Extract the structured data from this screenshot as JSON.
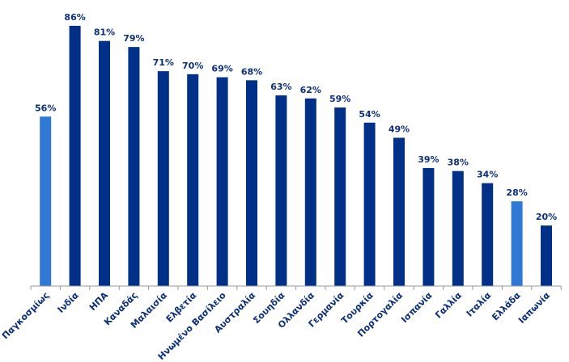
{
  "chart_data": {
    "type": "bar",
    "categories": [
      "Παγκοσμίως",
      "Ινδία",
      "ΗΠΑ",
      "Καναδάς",
      "Μαλαισία",
      "Ελβετία",
      "Ηνωμένο Βασίλειο",
      "Αυστραλία",
      "Σουηδία",
      "Ολλανδία",
      "Γερμανία",
      "Τουρκία",
      "Πορτογαλία",
      "Ισπανία",
      "Γαλλία",
      "Ιταλία",
      "Ελλάδα",
      "Ιαπωνία"
    ],
    "values": [
      56,
      86,
      81,
      79,
      71,
      70,
      69,
      68,
      63,
      62,
      59,
      54,
      49,
      39,
      38,
      34,
      28,
      20
    ],
    "value_labels": [
      "56%",
      "86%",
      "81%",
      "79%",
      "71%",
      "70%",
      "69%",
      "68%",
      "63%",
      "62%",
      "59%",
      "54%",
      "49%",
      "39%",
      "38%",
      "34%",
      "28%",
      "20%"
    ],
    "highlighted_categories": [
      "Παγκοσμίως",
      "Ελλάδα"
    ],
    "colors": {
      "default": "#003087",
      "highlight": "#2f78d6",
      "label": "#0b2f7a",
      "axis": "#9a9a9a"
    },
    "ylim": [
      0,
      100
    ],
    "grid": false,
    "legend": "none"
  }
}
